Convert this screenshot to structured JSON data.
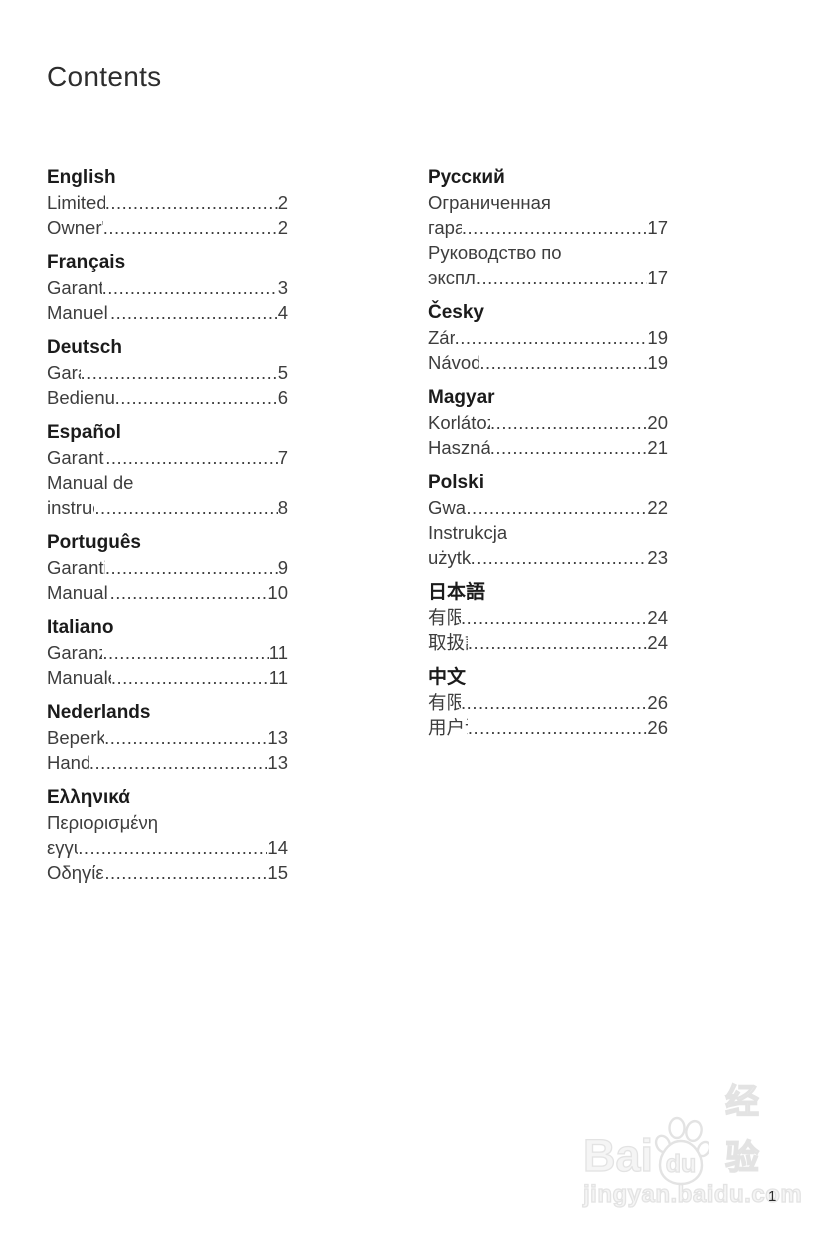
{
  "page": {
    "title": "Contents",
    "page_number": "1"
  },
  "watermark": {
    "brand_prefix": "Bai",
    "brand_paw_text": "du",
    "brand_suffix": "经验",
    "url": "jingyan.baidu.com"
  },
  "colors": {
    "body_text": "#3d3d3d",
    "heading_text": "#1b1b1b",
    "watermark_gray": "#e3e3e3",
    "background": "#ffffff"
  },
  "toc": {
    "columns": [
      {
        "name": "left",
        "sections": [
          {
            "heading": "English",
            "rows": [
              {
                "text": "Limited Warranty",
                "page": "2"
              },
              {
                "text": "Owner's Manual",
                "page": "2"
              }
            ]
          },
          {
            "heading": "Français",
            "rows": [
              {
                "text": "Garantie limitée",
                "page": "3"
              },
              {
                "text": "Manuel d'utilisation",
                "page": "4"
              }
            ]
          },
          {
            "heading": "Deutsch",
            "rows": [
              {
                "text": "Garantie",
                "page": "5"
              },
              {
                "text": "Bedienungsanleitung",
                "page": "6"
              }
            ]
          },
          {
            "heading": "Español",
            "rows": [
              {
                "text": "Garantía limitada",
                "page": "7"
              },
              {
                "text": "Manual de",
                "page": ""
              },
              {
                "text": "instrucciones",
                "page": "8"
              }
            ]
          },
          {
            "heading": "Português",
            "rows": [
              {
                "text": "Garantia limitada",
                "page": "9"
              },
              {
                "text": "Manual do utilizador",
                "page": "10"
              }
            ]
          },
          {
            "heading": "Italiano",
            "rows": [
              {
                "text": "Garanzia limitata",
                "page": "11"
              },
              {
                "text": "Manuale di istruzioni",
                "page": "11"
              }
            ]
          },
          {
            "heading": "Nederlands",
            "rows": [
              {
                "text": "Beperkte garantie",
                "page": "13"
              },
              {
                "text": "Handleiding",
                "page": "13"
              }
            ]
          },
          {
            "heading": "Ελληνικά",
            "rows": [
              {
                "text": "Περιορισμένη",
                "page": ""
              },
              {
                "text": "εγγύηση",
                "page": "14"
              },
              {
                "text": "Οδηγίες Χρήσεως",
                "page": "15"
              }
            ]
          }
        ]
      },
      {
        "name": "right",
        "sections": [
          {
            "heading": "Русский",
            "rows": [
              {
                "text": "Ограниченная",
                "page": ""
              },
              {
                "text": "гарантия",
                "page": "17"
              },
              {
                "text": "Руководство по",
                "page": ""
              },
              {
                "text": "эксплуатации",
                "page": "17"
              }
            ]
          },
          {
            "heading": "Česky",
            "rows": [
              {
                "text": "Záruka",
                "page": "19"
              },
              {
                "text": "Návod k použití",
                "page": "19"
              }
            ]
          },
          {
            "heading": "Magyar",
            "rows": [
              {
                "text": "Korlátozott garancia",
                "page": "20"
              },
              {
                "text": "Használati útmutató",
                "page": "21"
              }
            ]
          },
          {
            "heading": "Polski",
            "rows": [
              {
                "text": "Gwarancja",
                "page": "22"
              },
              {
                "text": "Instrukcja",
                "page": ""
              },
              {
                "text": "użytkownika",
                "page": "23"
              }
            ]
          },
          {
            "heading": "日本語",
            "rows": [
              {
                "text": "有限保証",
                "page": "24"
              },
              {
                "text": "取扱説明書",
                "page": "24"
              }
            ]
          },
          {
            "heading": "中文",
            "rows": [
              {
                "text": "有限担保",
                "page": "26"
              },
              {
                "text": "用户说明书",
                "page": "26"
              }
            ]
          }
        ]
      }
    ]
  }
}
